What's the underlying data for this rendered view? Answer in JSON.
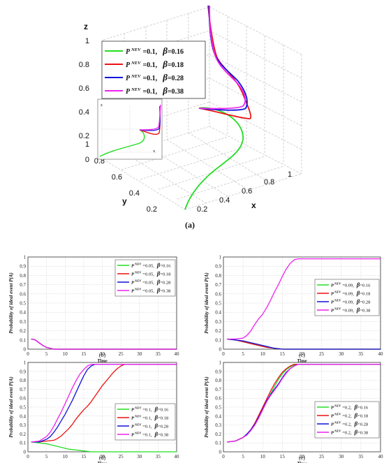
{
  "colors": {
    "green": "#22dd22",
    "red": "#ee1111",
    "blue": "#1111dd",
    "magenta": "#ee22ee"
  },
  "chart_data": [
    {
      "panel": "(a)",
      "type": "line",
      "projection": "3d",
      "caption": "(a)",
      "xlabel": "x",
      "ylabel": "y",
      "zlabel": "z",
      "xticks": [
        "0.2",
        "0.4",
        "0.6",
        "0.8",
        "1"
      ],
      "yticks": [
        "0.2",
        "0.4",
        "0.6",
        "0.8",
        "1"
      ],
      "zticks": [
        "0",
        "0.2",
        "0.4",
        "0.6",
        "0.8",
        "1"
      ],
      "legend": [
        {
          "label": "P NEV =0.1,  β=0.16",
          "p_label": "P",
          "sup": "NEV",
          "p_value": "=0.1,",
          "beta_label": "β",
          "beta_value": "=0.16",
          "color": "#22dd22"
        },
        {
          "label": "P NEV =0.1,  β=0.18",
          "p_label": "P",
          "sup": "NEV",
          "p_value": "=0.1,",
          "beta_label": "β",
          "beta_value": "=0.18",
          "color": "#ee1111"
        },
        {
          "label": "P NEV =0.1,  β=0.28",
          "p_label": "P",
          "sup": "NEV",
          "p_value": "=0.1,",
          "beta_label": "β",
          "beta_value": "=0.28",
          "color": "#1111dd"
        },
        {
          "label": "P NEV =0.1,  β=0.38",
          "p_label": "P",
          "sup": "NEV",
          "p_value": "=0.1,",
          "beta_label": "β",
          "beta_value": "=0.38",
          "color": "#ee22ee"
        }
      ],
      "inset_labels": {
        "z": "z",
        "x": "x"
      }
    },
    {
      "panel": "(b)",
      "type": "line",
      "caption": "(b)",
      "xlabel": "Time",
      "ylabel": "Probability of ideal event P(A)",
      "xlim": [
        0,
        40
      ],
      "ylim": [
        0,
        1
      ],
      "xticks": [
        "0",
        "5",
        "10",
        "15",
        "20",
        "25",
        "30",
        "35",
        "40"
      ],
      "yticks": [
        "0",
        "0.1",
        "0.2",
        "0.3",
        "0.4",
        "0.5",
        "0.6",
        "0.7",
        "0.8",
        "0.9",
        "1"
      ],
      "legend_position": "top-right",
      "series": [
        {
          "name": "P NEV =0.05,  β=0.16",
          "p_value": "=0.05,",
          "beta_value": "=0.16",
          "color": "#22dd22",
          "x": [
            1,
            2,
            3,
            4,
            5,
            6,
            7,
            8,
            40
          ],
          "y": [
            0.11,
            0.1,
            0.07,
            0.04,
            0.02,
            0.01,
            0.0,
            0.0,
            0.0
          ]
        },
        {
          "name": "P NEV =0.05,  β=0.18",
          "p_value": "=0.05,",
          "beta_value": "=0.18",
          "color": "#ee1111",
          "x": [
            1,
            2,
            3,
            4,
            5,
            6,
            7,
            8,
            40
          ],
          "y": [
            0.11,
            0.1,
            0.07,
            0.04,
            0.02,
            0.01,
            0.0,
            0.0,
            0.0
          ]
        },
        {
          "name": "P NEV =0.05,  β=0.28",
          "p_value": "=0.05,",
          "beta_value": "=0.28",
          "color": "#1111dd",
          "x": [
            1,
            2,
            3,
            4,
            5,
            6,
            7,
            8,
            40
          ],
          "y": [
            0.11,
            0.1,
            0.07,
            0.04,
            0.02,
            0.01,
            0.0,
            0.0,
            0.0
          ]
        },
        {
          "name": "P NEV =0.05,  β=0.38",
          "p_value": "=0.05,",
          "beta_value": "=0.38",
          "color": "#ee22ee",
          "x": [
            1,
            2,
            3,
            4,
            5,
            6,
            7,
            8,
            40
          ],
          "y": [
            0.11,
            0.1,
            0.07,
            0.04,
            0.02,
            0.01,
            0.0,
            0.0,
            0.0
          ]
        }
      ]
    },
    {
      "panel": "(c)",
      "type": "line",
      "caption": "(c)",
      "xlabel": "Time",
      "ylabel": "Probability of ideal event P(A)",
      "xlim": [
        0,
        40
      ],
      "ylim": [
        0,
        1
      ],
      "xticks": [
        "0",
        "5",
        "10",
        "15",
        "20",
        "25",
        "30",
        "35",
        "40"
      ],
      "yticks": [
        "0",
        "0.1",
        "0.2",
        "0.3",
        "0.4",
        "0.5",
        "0.6",
        "0.7",
        "0.8",
        "0.9",
        "1"
      ],
      "legend_position": "center-right",
      "series": [
        {
          "name": "P NEV =0.09,  β=0.16",
          "p_value": "=0.09,",
          "beta_value": "=0.16",
          "color": "#22dd22",
          "x": [
            1,
            3,
            5,
            7,
            9,
            11,
            13,
            15,
            17,
            40
          ],
          "y": [
            0.11,
            0.1,
            0.08,
            0.06,
            0.04,
            0.02,
            0.01,
            0.0,
            0.0,
            0.0
          ]
        },
        {
          "name": "P NEV =0.09,  β=0.18",
          "p_value": "=0.09,",
          "beta_value": "=0.18",
          "color": "#ee1111",
          "x": [
            1,
            3,
            5,
            7,
            9,
            11,
            13,
            15,
            17,
            40
          ],
          "y": [
            0.11,
            0.1,
            0.08,
            0.06,
            0.04,
            0.02,
            0.01,
            0.0,
            0.0,
            0.0
          ]
        },
        {
          "name": "P NEV =0.09,  β=0.28",
          "p_value": "=0.09,",
          "beta_value": "=0.28",
          "color": "#1111dd",
          "x": [
            1,
            3,
            5,
            7,
            9,
            11,
            13,
            15,
            17,
            40
          ],
          "y": [
            0.11,
            0.1,
            0.09,
            0.07,
            0.05,
            0.03,
            0.01,
            0.0,
            0.0,
            0.0
          ]
        },
        {
          "name": "P NEV =0.09,  β=0.38",
          "p_value": "=0.09,",
          "beta_value": "=0.38",
          "color": "#ee22ee",
          "x": [
            1,
            3,
            5,
            6,
            7,
            8,
            9,
            10,
            11,
            12,
            13,
            14,
            15,
            16,
            17,
            18,
            19,
            40
          ],
          "y": [
            0.11,
            0.11,
            0.12,
            0.15,
            0.2,
            0.27,
            0.33,
            0.38,
            0.45,
            0.53,
            0.62,
            0.7,
            0.79,
            0.87,
            0.93,
            0.97,
            0.98,
            0.98
          ]
        }
      ]
    },
    {
      "panel": "(d)",
      "type": "line",
      "caption": "(d)",
      "xlabel": "Time",
      "ylabel": "Probability of ideal event P(A)",
      "xlim": [
        0,
        40
      ],
      "ylim": [
        0,
        1
      ],
      "xticks": [
        "0",
        "5",
        "10",
        "15",
        "20",
        "25",
        "30",
        "35",
        "40"
      ],
      "yticks": [
        "0",
        "0.1",
        "0.2",
        "0.3",
        "0.4",
        "0.5",
        "0.6",
        "0.7",
        "0.8",
        "0.9",
        "1"
      ],
      "legend_position": "bottom-right",
      "series": [
        {
          "name": "P NEV =0.1,  β=0.16",
          "p_value": "=0.1,",
          "beta_value": "=0.16",
          "color": "#22dd22",
          "x": [
            1,
            3,
            5,
            7,
            9,
            11,
            13,
            15,
            17,
            40
          ],
          "y": [
            0.11,
            0.1,
            0.09,
            0.07,
            0.05,
            0.03,
            0.02,
            0.01,
            0.0,
            0.0
          ]
        },
        {
          "name": "P NEV =0.1,  β=0.18",
          "p_value": "=0.1,",
          "beta_value": "=0.18",
          "color": "#ee1111",
          "x": [
            1,
            3,
            5,
            7,
            8,
            9,
            10,
            11,
            12,
            13,
            14,
            15,
            16,
            17,
            18,
            19,
            20,
            21,
            22,
            23,
            24,
            25,
            26,
            27,
            40
          ],
          "y": [
            0.11,
            0.11,
            0.12,
            0.13,
            0.15,
            0.18,
            0.22,
            0.26,
            0.31,
            0.37,
            0.42,
            0.47,
            0.51,
            0.56,
            0.62,
            0.68,
            0.74,
            0.79,
            0.84,
            0.89,
            0.93,
            0.96,
            0.98,
            0.98,
            0.98
          ]
        },
        {
          "name": "P NEV =0.1,  β=0.28",
          "p_value": "=0.1,",
          "beta_value": "=0.28",
          "color": "#1111dd",
          "x": [
            1,
            3,
            5,
            6,
            7,
            8,
            9,
            10,
            11,
            12,
            13,
            14,
            15,
            16,
            17,
            18,
            19,
            40
          ],
          "y": [
            0.11,
            0.11,
            0.14,
            0.17,
            0.22,
            0.28,
            0.35,
            0.42,
            0.5,
            0.58,
            0.67,
            0.76,
            0.85,
            0.92,
            0.96,
            0.98,
            0.98,
            0.98
          ]
        },
        {
          "name": "P NEV =0.1,  β=0.38",
          "p_value": "=0.1,",
          "beta_value": "=0.38",
          "color": "#ee22ee",
          "x": [
            1,
            3,
            5,
            6,
            7,
            8,
            9,
            10,
            11,
            12,
            13,
            14,
            15,
            16,
            17,
            18,
            40
          ],
          "y": [
            0.11,
            0.12,
            0.17,
            0.22,
            0.29,
            0.37,
            0.45,
            0.54,
            0.63,
            0.72,
            0.8,
            0.87,
            0.92,
            0.96,
            0.98,
            0.98,
            0.98
          ]
        }
      ]
    },
    {
      "panel": "(e)",
      "type": "line",
      "caption": "(e)",
      "xlabel": "Time",
      "ylabel": "Probability of ideal event P(A)",
      "xlim": [
        0,
        40
      ],
      "ylim": [
        0,
        1
      ],
      "xticks": [
        "0",
        "5",
        "10",
        "15",
        "20",
        "25",
        "30",
        "35",
        "40"
      ],
      "yticks": [
        "0",
        "0.1",
        "0.2",
        "0.3",
        "0.4",
        "0.5",
        "0.6",
        "0.7",
        "0.8",
        "0.9",
        "1"
      ],
      "legend_position": "bottom-right",
      "series": [
        {
          "name": "P NEV =0.2,  β=0.16",
          "p_value": "=0.2,",
          "beta_value": "=0.16",
          "color": "#22dd22",
          "x": [
            1,
            3,
            5,
            6,
            7,
            8,
            9,
            10,
            11,
            12,
            13,
            14,
            15,
            16,
            17,
            18,
            19,
            20,
            21,
            40
          ],
          "y": [
            0.11,
            0.12,
            0.16,
            0.19,
            0.24,
            0.3,
            0.38,
            0.47,
            0.56,
            0.65,
            0.73,
            0.81,
            0.87,
            0.92,
            0.95,
            0.97,
            0.98,
            0.98,
            0.98,
            0.98
          ]
        },
        {
          "name": "P NEV =0.2,  β=0.18",
          "p_value": "=0.2,",
          "beta_value": "=0.18",
          "color": "#ee1111",
          "x": [
            1,
            3,
            5,
            6,
            7,
            8,
            9,
            10,
            11,
            12,
            13,
            14,
            15,
            16,
            17,
            18,
            19,
            20,
            40
          ],
          "y": [
            0.11,
            0.12,
            0.16,
            0.2,
            0.25,
            0.32,
            0.41,
            0.5,
            0.59,
            0.68,
            0.76,
            0.83,
            0.89,
            0.93,
            0.96,
            0.98,
            0.98,
            0.98,
            0.98
          ]
        },
        {
          "name": "P NEV =0.2,  β=0.28",
          "p_value": "=0.2,",
          "beta_value": "=0.28",
          "color": "#1111dd",
          "x": [
            1,
            3,
            5,
            6,
            7,
            8,
            9,
            10,
            11,
            12,
            13,
            14,
            15,
            16,
            17,
            18,
            19,
            20,
            21,
            40
          ],
          "y": [
            0.11,
            0.12,
            0.16,
            0.2,
            0.25,
            0.31,
            0.39,
            0.48,
            0.57,
            0.64,
            0.7,
            0.76,
            0.83,
            0.89,
            0.93,
            0.96,
            0.98,
            0.98,
            0.98,
            0.98
          ]
        },
        {
          "name": "P NEV =0.2,  β=0.38",
          "p_value": "=0.2,",
          "beta_value": "=0.38",
          "color": "#ee22ee",
          "x": [
            1,
            3,
            5,
            6,
            7,
            8,
            9,
            10,
            11,
            12,
            13,
            14,
            15,
            16,
            17,
            18,
            19,
            20,
            21,
            40
          ],
          "y": [
            0.11,
            0.12,
            0.16,
            0.19,
            0.24,
            0.3,
            0.38,
            0.47,
            0.56,
            0.63,
            0.69,
            0.75,
            0.82,
            0.88,
            0.93,
            0.96,
            0.98,
            0.98,
            0.98,
            0.98
          ]
        }
      ]
    }
  ]
}
